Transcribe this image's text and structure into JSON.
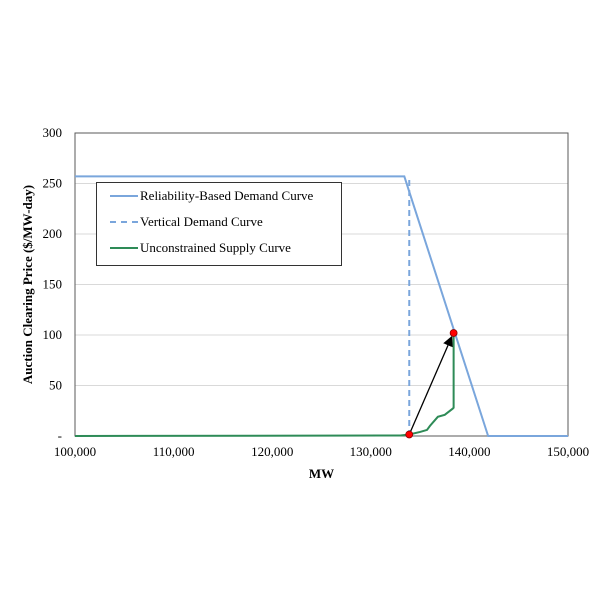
{
  "chart_data": {
    "type": "line",
    "xlabel": "MW",
    "ylabel": "Auction Clearing Price ($/MW-day)",
    "xlim": [
      100000,
      150000
    ],
    "ylim": [
      0,
      300
    ],
    "xticks": [
      100000,
      110000,
      120000,
      130000,
      140000,
      150000
    ],
    "xtick_labels": [
      "100,000",
      "110,000",
      "120,000",
      "130,000",
      "140,000",
      "150,000"
    ],
    "yticks": [
      0,
      50,
      100,
      150,
      200,
      250,
      300
    ],
    "ytick_labels": [
      "-",
      "50",
      "100",
      "150",
      "200",
      "250",
      "300"
    ],
    "grid": "horizontal",
    "legend_position": "upper-left",
    "series": [
      {
        "name": "Reliability-Based Demand Curve",
        "color": "#7aa6dc",
        "style": "solid",
        "x": [
          100000,
          133400,
          141900,
          150000
        ],
        "y": [
          257,
          257,
          0,
          0
        ]
      },
      {
        "name": "Vertical Demand Curve",
        "color": "#7aa6dc",
        "style": "dashed",
        "x": [
          133900,
          133900
        ],
        "y": [
          0,
          257
        ]
      },
      {
        "name": "Unconstrained Supply Curve",
        "color": "#2e8b57",
        "style": "solid",
        "x": [
          100000,
          133000,
          133900,
          135000,
          135700,
          136000,
          136800,
          137500,
          138300,
          138400,
          138400
        ],
        "y": [
          0,
          0.5,
          1.5,
          4,
          6,
          10,
          19,
          21,
          27,
          28,
          102
        ]
      }
    ],
    "points": [
      {
        "x": 133900,
        "y": 1.5,
        "color": "#ff0000"
      },
      {
        "x": 138400,
        "y": 102,
        "color": "#ff0000"
      }
    ],
    "annotations": [
      {
        "type": "arrow",
        "from": [
          133900,
          1.5
        ],
        "to": [
          138400,
          102
        ]
      }
    ]
  }
}
